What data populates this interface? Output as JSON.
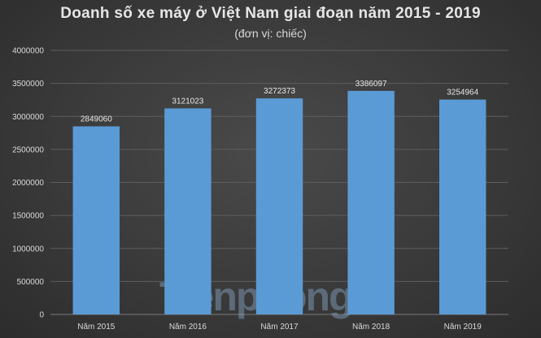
{
  "chart_data": {
    "type": "bar",
    "title": "Doanh số xe máy ở Việt Nam giai đoạn năm 2015 - 2019",
    "subtitle": "(đơn vị: chiếc)",
    "categories": [
      "Năm 2015",
      "Năm 2016",
      "Năm 2017",
      "Năm 2018",
      "Năm 2019"
    ],
    "values": [
      2849060,
      3121023,
      3272373,
      3386097,
      3254964
    ],
    "data_labels": [
      "2849060",
      "3121023",
      "3272373",
      "3386097",
      "3254964"
    ],
    "ylim": [
      0,
      4000000
    ],
    "yticks": [
      0,
      500000,
      1000000,
      1500000,
      2000000,
      2500000,
      3000000,
      3500000,
      4000000
    ],
    "ytick_labels": [
      "0",
      "500000",
      "1000000",
      "1500000",
      "2000000",
      "2500000",
      "3000000",
      "3500000",
      "4000000"
    ],
    "grid": true,
    "bar_color": "#5b9bd5",
    "grid_color": "#5e5e5e",
    "background_color": "#3c3c3c"
  },
  "watermark": {
    "text": "Tiềnphong",
    "color": "#8aa6c8"
  }
}
